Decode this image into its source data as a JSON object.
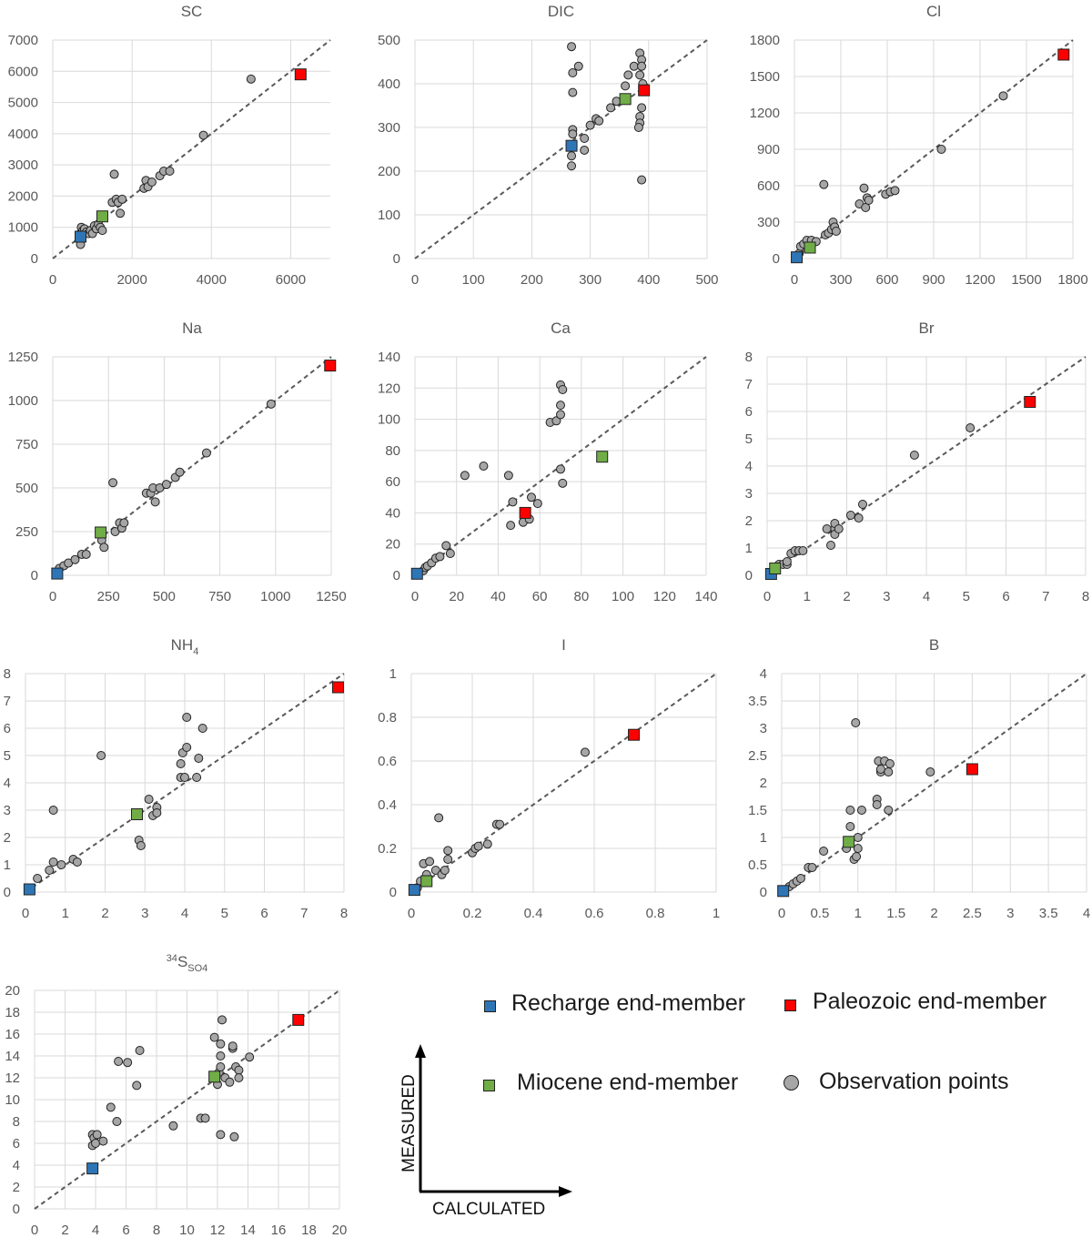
{
  "colors": {
    "recharge": "#2e75b6",
    "paleozoic": "#ff0000",
    "miocene": "#70ad47",
    "observation": "#a6a6a6",
    "grid": "#d9d9d9",
    "diagonal": "#595959"
  },
  "legend": {
    "recharge": "Recharge end-member",
    "paleozoic": "Paleozoic end-member",
    "miocene": "Miocene end-member",
    "observation": "Observation points"
  },
  "axes_key": {
    "ylabel": "MEASURED",
    "xlabel": "CALCULATED"
  },
  "chart_data": [
    {
      "type": "scatter",
      "id": "sc",
      "title": "SC",
      "xlabel": "CALCULATED",
      "ylabel": "MEASURED",
      "xlim": [
        0,
        7000
      ],
      "ylim": [
        0,
        7000
      ],
      "xticks": [
        0,
        2000,
        4000,
        6000
      ],
      "yticks": [
        0,
        1000,
        2000,
        3000,
        4000,
        5000,
        6000,
        7000
      ],
      "observations": [
        [
          700,
          450
        ],
        [
          700,
          800
        ],
        [
          720,
          1000
        ],
        [
          760,
          900
        ],
        [
          800,
          950
        ],
        [
          850,
          850
        ],
        [
          900,
          800
        ],
        [
          950,
          900
        ],
        [
          1000,
          800
        ],
        [
          1050,
          1050
        ],
        [
          1100,
          950
        ],
        [
          1150,
          1100
        ],
        [
          1200,
          1000
        ],
        [
          1250,
          900
        ],
        [
          1500,
          1800
        ],
        [
          1550,
          2700
        ],
        [
          1600,
          1900
        ],
        [
          1650,
          1800
        ],
        [
          1700,
          1450
        ],
        [
          1750,
          1900
        ],
        [
          2300,
          2250
        ],
        [
          2350,
          2500
        ],
        [
          2400,
          2300
        ],
        [
          2500,
          2450
        ],
        [
          2700,
          2650
        ],
        [
          2800,
          2800
        ],
        [
          2950,
          2800
        ],
        [
          3800,
          3950
        ],
        [
          5000,
          5750
        ]
      ],
      "recharge": [
        700,
        700
      ],
      "miocene": [
        1250,
        1350
      ],
      "paleozoic": [
        6250,
        5900
      ]
    },
    {
      "type": "scatter",
      "id": "dic",
      "title": "DIC",
      "xlabel": "CALCULATED",
      "ylabel": "MEASURED",
      "xlim": [
        0,
        500
      ],
      "ylim": [
        0,
        500
      ],
      "xticks": [
        0,
        100,
        200,
        300,
        400,
        500
      ],
      "yticks": [
        0,
        100,
        200,
        300,
        400,
        500
      ],
      "observations": [
        [
          268,
          485
        ],
        [
          270,
          425
        ],
        [
          280,
          440
        ],
        [
          270,
          380
        ],
        [
          270,
          295
        ],
        [
          268,
          235
        ],
        [
          268,
          212
        ],
        [
          270,
          285
        ],
        [
          290,
          248
        ],
        [
          290,
          275
        ],
        [
          300,
          305
        ],
        [
          310,
          320
        ],
        [
          315,
          315
        ],
        [
          335,
          345
        ],
        [
          345,
          360
        ],
        [
          360,
          395
        ],
        [
          365,
          420
        ],
        [
          375,
          440
        ],
        [
          385,
          470
        ],
        [
          388,
          455
        ],
        [
          388,
          440
        ],
        [
          385,
          420
        ],
        [
          390,
          400
        ],
        [
          388,
          345
        ],
        [
          385,
          325
        ],
        [
          385,
          310
        ],
        [
          383,
          300
        ],
        [
          388,
          180
        ]
      ],
      "recharge": [
        268,
        258
      ],
      "miocene": [
        360,
        365
      ],
      "paleozoic": [
        392,
        385
      ]
    },
    {
      "type": "scatter",
      "id": "cl",
      "title": "Cl",
      "xlabel": "CALCULATED",
      "ylabel": "MEASURED",
      "xlim": [
        0,
        1800
      ],
      "ylim": [
        0,
        1800
      ],
      "xticks": [
        0,
        300,
        600,
        900,
        1200,
        1500,
        1800
      ],
      "yticks": [
        0,
        300,
        600,
        900,
        1200,
        1500,
        1800
      ],
      "observations": [
        [
          30,
          40
        ],
        [
          40,
          100
        ],
        [
          60,
          120
        ],
        [
          80,
          150
        ],
        [
          110,
          150
        ],
        [
          140,
          140
        ],
        [
          190,
          610
        ],
        [
          200,
          195
        ],
        [
          220,
          210
        ],
        [
          240,
          240
        ],
        [
          250,
          300
        ],
        [
          260,
          260
        ],
        [
          270,
          225
        ],
        [
          420,
          450
        ],
        [
          450,
          580
        ],
        [
          460,
          420
        ],
        [
          470,
          500
        ],
        [
          480,
          480
        ],
        [
          590,
          530
        ],
        [
          620,
          550
        ],
        [
          650,
          560
        ],
        [
          950,
          900
        ],
        [
          1350,
          1340
        ]
      ],
      "recharge": [
        15,
        10
      ],
      "miocene": [
        100,
        90
      ],
      "paleozoic": [
        1740,
        1680
      ]
    },
    {
      "type": "scatter",
      "id": "na",
      "title": "Na",
      "xlabel": "CALCULATED",
      "ylabel": "MEASURED",
      "xlim": [
        0,
        1250
      ],
      "ylim": [
        0,
        1250
      ],
      "xticks": [
        0,
        250,
        500,
        750,
        1000,
        1250
      ],
      "yticks": [
        0,
        250,
        500,
        750,
        1000,
        1250
      ],
      "observations": [
        [
          30,
          40
        ],
        [
          50,
          55
        ],
        [
          70,
          70
        ],
        [
          100,
          90
        ],
        [
          130,
          120
        ],
        [
          150,
          120
        ],
        [
          220,
          200
        ],
        [
          230,
          160
        ],
        [
          270,
          530
        ],
        [
          280,
          250
        ],
        [
          300,
          300
        ],
        [
          310,
          270
        ],
        [
          320,
          300
        ],
        [
          420,
          470
        ],
        [
          440,
          470
        ],
        [
          450,
          500
        ],
        [
          460,
          420
        ],
        [
          480,
          500
        ],
        [
          510,
          520
        ],
        [
          550,
          560
        ],
        [
          570,
          590
        ],
        [
          690,
          700
        ],
        [
          980,
          980
        ]
      ],
      "recharge": [
        20,
        10
      ],
      "miocene": [
        215,
        245
      ],
      "paleozoic": [
        1245,
        1200
      ]
    },
    {
      "type": "scatter",
      "id": "ca",
      "title": "Ca",
      "xlabel": "CALCULATED",
      "ylabel": "MEASURED",
      "xlim": [
        0,
        140
      ],
      "ylim": [
        0,
        140
      ],
      "xticks": [
        0,
        20,
        40,
        60,
        80,
        100,
        120,
        140
      ],
      "yticks": [
        0,
        20,
        40,
        60,
        80,
        100,
        120,
        140
      ],
      "observations": [
        [
          4,
          3
        ],
        [
          5,
          5
        ],
        [
          6,
          6
        ],
        [
          8,
          8
        ],
        [
          10,
          11
        ],
        [
          12,
          12
        ],
        [
          15,
          19
        ],
        [
          17,
          14
        ],
        [
          24,
          64
        ],
        [
          33,
          70
        ],
        [
          45,
          64
        ],
        [
          47,
          47
        ],
        [
          46,
          32
        ],
        [
          52,
          34
        ],
        [
          55,
          36
        ],
        [
          56,
          50
        ],
        [
          59,
          46
        ],
        [
          65,
          98
        ],
        [
          68,
          99
        ],
        [
          70,
          122
        ],
        [
          71,
          119
        ],
        [
          70,
          109
        ],
        [
          70,
          103
        ],
        [
          70,
          68
        ],
        [
          71,
          59
        ]
      ],
      "recharge": [
        1,
        1
      ],
      "miocene": [
        90,
        76
      ],
      "paleozoic": [
        53,
        40
      ]
    },
    {
      "type": "scatter",
      "id": "br",
      "title": "Br",
      "xlabel": "CALCULATED",
      "ylabel": "MEASURED",
      "xlim": [
        0,
        8
      ],
      "ylim": [
        0,
        8
      ],
      "xticks": [
        0,
        1,
        2,
        3,
        4,
        5,
        6,
        7,
        8
      ],
      "yticks": [
        0,
        1,
        2,
        3,
        4,
        5,
        6,
        7,
        8
      ],
      "observations": [
        [
          0.2,
          0.3
        ],
        [
          0.3,
          0.4
        ],
        [
          0.4,
          0.4
        ],
        [
          0.5,
          0.4
        ],
        [
          0.5,
          0.5
        ],
        [
          0.6,
          0.8
        ],
        [
          0.7,
          0.9
        ],
        [
          0.8,
          0.9
        ],
        [
          0.9,
          0.9
        ],
        [
          1.5,
          1.7
        ],
        [
          1.6,
          1.1
        ],
        [
          1.7,
          1.7
        ],
        [
          1.7,
          1.9
        ],
        [
          1.7,
          1.5
        ],
        [
          1.8,
          1.7
        ],
        [
          2.1,
          2.2
        ],
        [
          2.3,
          2.1
        ],
        [
          2.4,
          2.6
        ],
        [
          3.7,
          4.4
        ],
        [
          5.1,
          5.4
        ]
      ],
      "recharge": [
        0.1,
        0.05
      ],
      "miocene": [
        0.2,
        0.25
      ],
      "paleozoic": [
        6.6,
        6.35
      ]
    },
    {
      "type": "scatter",
      "id": "nh4",
      "title": "NH",
      "title_sub": "4",
      "xlabel": "CALCULATED",
      "ylabel": "MEASURED",
      "xlim": [
        0,
        8
      ],
      "ylim": [
        0,
        8
      ],
      "xticks": [
        0,
        1,
        2,
        3,
        4,
        5,
        6,
        7,
        8
      ],
      "yticks": [
        0,
        1,
        2,
        3,
        4,
        5,
        6,
        7,
        8
      ],
      "observations": [
        [
          0.3,
          0.5
        ],
        [
          0.6,
          0.8
        ],
        [
          0.7,
          1.1
        ],
        [
          0.7,
          3.0
        ],
        [
          0.9,
          1.0
        ],
        [
          1.2,
          1.2
        ],
        [
          1.3,
          1.1
        ],
        [
          1.9,
          5.0
        ],
        [
          2.8,
          2.8
        ],
        [
          2.85,
          1.9
        ],
        [
          2.9,
          1.7
        ],
        [
          3.1,
          3.4
        ],
        [
          3.2,
          2.8
        ],
        [
          3.3,
          3.1
        ],
        [
          3.3,
          2.9
        ],
        [
          3.9,
          4.2
        ],
        [
          3.9,
          4.7
        ],
        [
          3.95,
          5.1
        ],
        [
          4.0,
          4.2
        ],
        [
          4.05,
          5.3
        ],
        [
          4.05,
          6.4
        ],
        [
          4.3,
          4.2
        ],
        [
          4.35,
          4.9
        ],
        [
          4.45,
          6.0
        ]
      ],
      "recharge": [
        0.1,
        0.1
      ],
      "miocene": [
        2.8,
        2.85
      ],
      "paleozoic": [
        7.85,
        7.5
      ]
    },
    {
      "type": "scatter",
      "id": "i",
      "title": "I",
      "xlabel": "CALCULATED",
      "ylabel": "MEASURED",
      "xlim": [
        0,
        1
      ],
      "ylim": [
        0,
        1
      ],
      "xticks": [
        0,
        0.2,
        0.4,
        0.6,
        0.8,
        1
      ],
      "yticks": [
        0,
        0.2,
        0.4,
        0.6,
        0.8,
        1
      ],
      "observations": [
        [
          0.02,
          0.02
        ],
        [
          0.03,
          0.05
        ],
        [
          0.04,
          0.13
        ],
        [
          0.05,
          0.08
        ],
        [
          0.06,
          0.14
        ],
        [
          0.08,
          0.1
        ],
        [
          0.09,
          0.34
        ],
        [
          0.1,
          0.08
        ],
        [
          0.11,
          0.1
        ],
        [
          0.12,
          0.19
        ],
        [
          0.12,
          0.15
        ],
        [
          0.2,
          0.18
        ],
        [
          0.21,
          0.2
        ],
        [
          0.22,
          0.21
        ],
        [
          0.25,
          0.22
        ],
        [
          0.28,
          0.31
        ],
        [
          0.29,
          0.31
        ],
        [
          0.57,
          0.64
        ]
      ],
      "recharge": [
        0.01,
        0.01
      ],
      "miocene": [
        0.05,
        0.05
      ],
      "paleozoic": [
        0.73,
        0.72
      ]
    },
    {
      "type": "scatter",
      "id": "b",
      "title": "B",
      "xlabel": "CALCULATED",
      "ylabel": "MEASURED",
      "xlim": [
        0,
        4
      ],
      "ylim": [
        0,
        4
      ],
      "xticks": [
        0,
        0.5,
        1,
        1.5,
        2,
        2.5,
        3,
        3.5,
        4
      ],
      "yticks": [
        0,
        0.5,
        1,
        1.5,
        2,
        2.5,
        3,
        3.5,
        4
      ],
      "observations": [
        [
          0.1,
          0.1
        ],
        [
          0.15,
          0.15
        ],
        [
          0.2,
          0.2
        ],
        [
          0.25,
          0.25
        ],
        [
          0.35,
          0.45
        ],
        [
          0.4,
          0.45
        ],
        [
          0.55,
          0.75
        ],
        [
          0.85,
          0.8
        ],
        [
          0.9,
          1.2
        ],
        [
          0.9,
          1.5
        ],
        [
          0.95,
          0.6
        ],
        [
          0.97,
          3.1
        ],
        [
          0.98,
          0.65
        ],
        [
          1.0,
          1.0
        ],
        [
          1.0,
          0.8
        ],
        [
          1.05,
          1.5
        ],
        [
          1.25,
          1.7
        ],
        [
          1.25,
          1.6
        ],
        [
          1.27,
          2.4
        ],
        [
          1.3,
          2.2
        ],
        [
          1.3,
          2.25
        ],
        [
          1.35,
          2.4
        ],
        [
          1.4,
          1.5
        ],
        [
          1.4,
          2.2
        ],
        [
          1.42,
          2.35
        ],
        [
          1.95,
          2.2
        ]
      ],
      "recharge": [
        0.02,
        0.02
      ],
      "miocene": [
        0.88,
        0.92
      ],
      "paleozoic": [
        2.5,
        2.25
      ]
    },
    {
      "type": "scatter",
      "id": "s34",
      "title": "S",
      "title_sup": "34",
      "title_sub": "SO4",
      "xlabel": "CALCULATED",
      "ylabel": "MEASURED",
      "xlim": [
        0,
        20
      ],
      "ylim": [
        0,
        20
      ],
      "xticks": [
        0,
        2,
        4,
        6,
        8,
        10,
        12,
        14,
        16,
        18,
        20
      ],
      "yticks": [
        0,
        2,
        4,
        6,
        8,
        10,
        12,
        14,
        16,
        18,
        20
      ],
      "observations": [
        [
          3.8,
          5.8
        ],
        [
          3.8,
          6.8
        ],
        [
          3.9,
          6.5
        ],
        [
          4.0,
          6.0
        ],
        [
          4.1,
          6.8
        ],
        [
          4.5,
          6.2
        ],
        [
          5.0,
          9.3
        ],
        [
          5.4,
          8.0
        ],
        [
          5.5,
          13.5
        ],
        [
          6.1,
          13.4
        ],
        [
          6.7,
          11.3
        ],
        [
          6.9,
          14.5
        ],
        [
          9.1,
          7.6
        ],
        [
          10.9,
          8.3
        ],
        [
          11.2,
          8.3
        ],
        [
          11.8,
          15.7
        ],
        [
          12.0,
          11.4
        ],
        [
          12.1,
          12.5
        ],
        [
          12.2,
          13.0
        ],
        [
          12.2,
          15.1
        ],
        [
          12.2,
          14.0
        ],
        [
          12.2,
          6.8
        ],
        [
          12.3,
          17.3
        ],
        [
          12.5,
          12.0
        ],
        [
          12.8,
          11.6
        ],
        [
          13.0,
          14.7
        ],
        [
          13.0,
          14.9
        ],
        [
          13.1,
          6.6
        ],
        [
          13.2,
          13.0
        ],
        [
          13.4,
          12.7
        ],
        [
          13.4,
          12.0
        ],
        [
          14.1,
          13.9
        ]
      ],
      "recharge": [
        3.8,
        3.7
      ],
      "miocene": [
        11.8,
        12.1
      ],
      "paleozoic": [
        17.3,
        17.3
      ]
    }
  ]
}
